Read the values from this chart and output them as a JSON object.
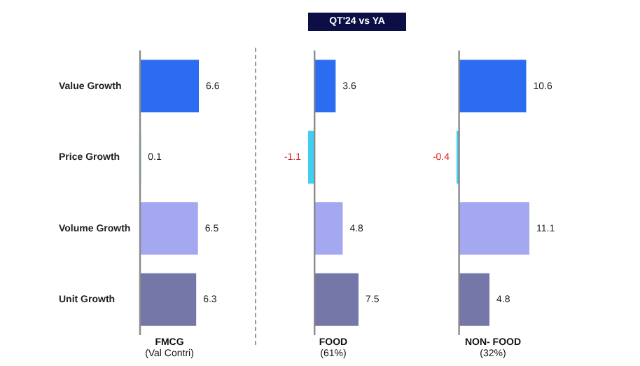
{
  "chart_data": [
    {
      "type": "bar",
      "orientation": "horizontal",
      "categories": [
        "Value Growth",
        "Price Growth",
        "Volume Growth",
        "Unit Growth"
      ],
      "values": [
        6.6,
        0.1,
        6.5,
        6.3
      ],
      "colors": [
        "#2b6cf0",
        "#3fd0f0",
        "#a3a8f0",
        "#7577a8"
      ],
      "xlabel": "FMCG",
      "annotations": [
        "(Val Contri)"
      ],
      "data_labels": true,
      "tick_labels": "y"
    },
    {
      "type": "bar",
      "orientation": "horizontal",
      "title": "QT'24 vs YA",
      "categories": [
        null,
        null,
        null,
        null
      ],
      "values": [
        3.6,
        -1.1,
        4.8,
        7.5
      ],
      "colors": [
        "#2b6cf0",
        "#3fd0f0",
        "#a3a8f0",
        "#7577a8"
      ],
      "xlabel": "FOOD",
      "annotations": [
        "(61%)"
      ],
      "data_labels": true,
      "tick_labels": false
    },
    {
      "type": "bar",
      "orientation": "horizontal",
      "categories": [
        null,
        null,
        null,
        null
      ],
      "values": [
        10.6,
        -0.4,
        11.1,
        4.8
      ],
      "colors": [
        "#2b6cf0",
        "#3fd0f0",
        "#a3a8f0",
        "#7577a8"
      ],
      "xlabel": "NON- FOOD",
      "annotations": [
        "(32%)"
      ],
      "data_labels": true,
      "tick_labels": false
    }
  ]
}
